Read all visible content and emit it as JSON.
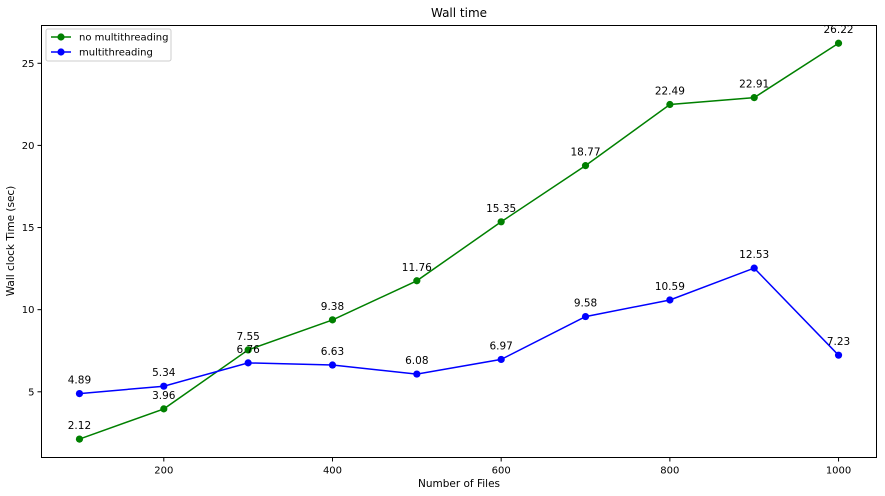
{
  "chart_data": {
    "type": "line",
    "title": "Wall time",
    "xlabel": "Number of Files",
    "ylabel": "Wall clock Time (sec)",
    "x": [
      100,
      200,
      300,
      400,
      500,
      600,
      700,
      800,
      900,
      1000
    ],
    "xlim": [
      55,
      1045
    ],
    "ylim": [
      1.0,
      27.3
    ],
    "xticks": [
      200,
      400,
      600,
      800,
      1000
    ],
    "yticks": [
      5,
      10,
      15,
      20,
      25
    ],
    "grid": false,
    "legend_position": "top-left",
    "series": [
      {
        "name": "no multithreading",
        "color": "#008000",
        "marker": "circle",
        "values": [
          2.12,
          3.96,
          7.55,
          9.38,
          11.76,
          15.35,
          18.77,
          22.49,
          22.91,
          26.22
        ]
      },
      {
        "name": "multithreading",
        "color": "#0000ff",
        "marker": "circle",
        "values": [
          4.89,
          5.34,
          6.76,
          6.63,
          6.08,
          6.97,
          9.58,
          10.59,
          12.53,
          7.23
        ]
      }
    ]
  }
}
